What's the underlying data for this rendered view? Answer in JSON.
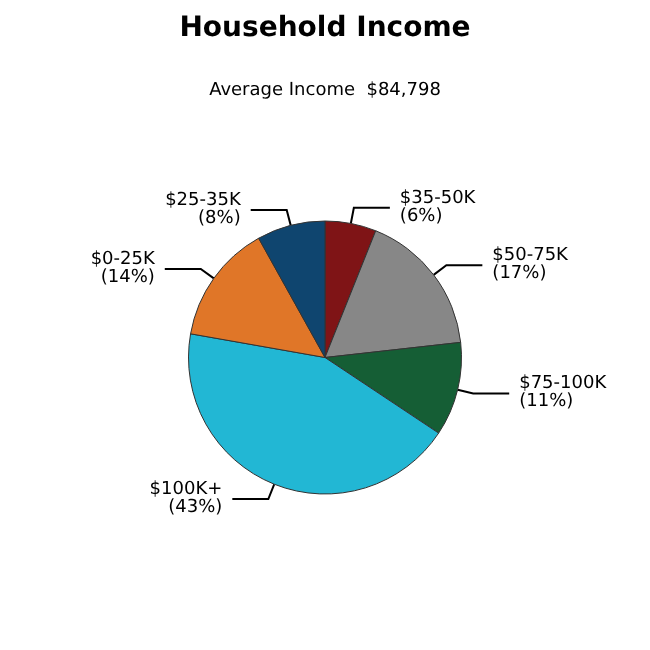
{
  "chart_data": {
    "type": "pie",
    "title": "Household Income",
    "subtitle": "Average Income  $84,798",
    "categories": [
      "$35-50K",
      "$50-75K",
      "$75-100K",
      "$100K+",
      "$0-25K",
      "$25-35K"
    ],
    "values": [
      6,
      17,
      11,
      43,
      14,
      8
    ],
    "value_labels": [
      "(6%)",
      "(17%)",
      "(11%)",
      "(43%)",
      "(14%)",
      "(8%)"
    ],
    "colors": [
      "#7f1416",
      "#878787",
      "#155e35",
      "#22b7d4",
      "#e07628",
      "#0f456f"
    ]
  }
}
